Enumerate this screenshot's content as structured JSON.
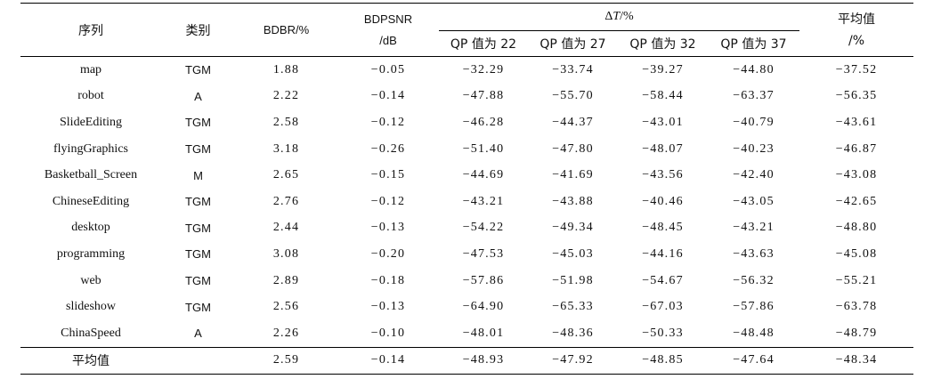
{
  "header": {
    "col_sequence": "序列",
    "col_category": "类别",
    "col_bdbr": "BDBR/%",
    "col_bdpsnr_line1": "BDPSNR",
    "col_bdpsnr_line2": "/dB",
    "col_dt_prefix": "Δ",
    "col_dt_symbol": "T",
    "col_dt_suffix": "/%",
    "qp_cols": [
      "QP 值为 22",
      "QP 值为 27",
      "QP 值为 32",
      "QP 值为 37"
    ],
    "col_avg_line1": "平均值",
    "col_avg_line2": "/%"
  },
  "rows": [
    {
      "seq": "map",
      "cat": "TGM",
      "bdbr": "1.88",
      "bdpsnr": "−0.05",
      "qp22": "−32.29",
      "qp27": "−33.74",
      "qp32": "−39.27",
      "qp37": "−44.80",
      "avg": "−37.52"
    },
    {
      "seq": "robot",
      "cat": "A",
      "bdbr": "2.22",
      "bdpsnr": "−0.14",
      "qp22": "−47.88",
      "qp27": "−55.70",
      "qp32": "−58.44",
      "qp37": "−63.37",
      "avg": "−56.35"
    },
    {
      "seq": "SlideEditing",
      "cat": "TGM",
      "bdbr": "2.58",
      "bdpsnr": "−0.12",
      "qp22": "−46.28",
      "qp27": "−44.37",
      "qp32": "−43.01",
      "qp37": "−40.79",
      "avg": "−43.61"
    },
    {
      "seq": "flyingGraphics",
      "cat": "TGM",
      "bdbr": "3.18",
      "bdpsnr": "−0.26",
      "qp22": "−51.40",
      "qp27": "−47.80",
      "qp32": "−48.07",
      "qp37": "−40.23",
      "avg": "−46.87"
    },
    {
      "seq": "Basketball_Screen",
      "cat": "M",
      "bdbr": "2.65",
      "bdpsnr": "−0.15",
      "qp22": "−44.69",
      "qp27": "−41.69",
      "qp32": "−43.56",
      "qp37": "−42.40",
      "avg": "−43.08"
    },
    {
      "seq": "ChineseEditing",
      "cat": "TGM",
      "bdbr": "2.76",
      "bdpsnr": "−0.12",
      "qp22": "−43.21",
      "qp27": "−43.88",
      "qp32": "−40.46",
      "qp37": "−43.05",
      "avg": "−42.65"
    },
    {
      "seq": "desktop",
      "cat": "TGM",
      "bdbr": "2.44",
      "bdpsnr": "−0.13",
      "qp22": "−54.22",
      "qp27": "−49.34",
      "qp32": "−48.45",
      "qp37": "−43.21",
      "avg": "−48.80"
    },
    {
      "seq": "programming",
      "cat": "TGM",
      "bdbr": "3.08",
      "bdpsnr": "−0.20",
      "qp22": "−47.53",
      "qp27": "−45.03",
      "qp32": "−44.16",
      "qp37": "−43.63",
      "avg": "−45.08"
    },
    {
      "seq": "web",
      "cat": "TGM",
      "bdbr": "2.89",
      "bdpsnr": "−0.18",
      "qp22": "−57.86",
      "qp27": "−51.98",
      "qp32": "−54.67",
      "qp37": "−56.32",
      "avg": "−55.21"
    },
    {
      "seq": "slideshow",
      "cat": "TGM",
      "bdbr": "2.56",
      "bdpsnr": "−0.13",
      "qp22": "−64.90",
      "qp27": "−65.33",
      "qp32": "−67.03",
      "qp37": "−57.86",
      "avg": "−63.78"
    },
    {
      "seq": "ChinaSpeed",
      "cat": "A",
      "bdbr": "2.26",
      "bdpsnr": "−0.10",
      "qp22": "−48.01",
      "qp27": "−48.36",
      "qp32": "−50.33",
      "qp37": "−48.48",
      "avg": "−48.79"
    }
  ],
  "footer": {
    "label": "平均值",
    "bdbr": "2.59",
    "bdpsnr": "−0.14",
    "qp22": "−48.93",
    "qp27": "−47.92",
    "qp32": "−48.85",
    "qp37": "−47.64",
    "avg": "−48.34"
  }
}
